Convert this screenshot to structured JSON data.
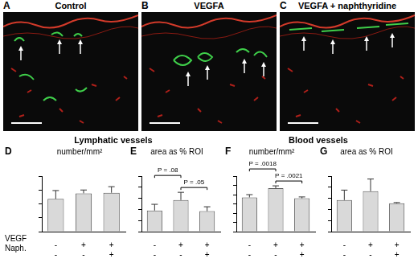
{
  "panels": [
    {
      "letter": "A",
      "title": "Control"
    },
    {
      "letter": "B",
      "title": "VEGFA"
    },
    {
      "letter": "C",
      "title": "VEGFA + naphthyridine"
    }
  ],
  "groups": [
    {
      "title": "Lymphatic vessels",
      "panels": [
        "D",
        "E"
      ]
    },
    {
      "title": "Blood vessels",
      "panels": [
        "F",
        "G"
      ]
    }
  ],
  "row_labels": [
    "VEGF",
    "Naph."
  ],
  "chart_data": [
    {
      "letter": "D",
      "type": "bar",
      "title": "number/mm²",
      "categories": [
        [
          "-",
          "-"
        ],
        [
          "+",
          "-"
        ],
        [
          "+",
          "+"
        ]
      ],
      "values": [
        11.8,
        13.8,
        14.0
      ],
      "errors": [
        3.0,
        1.2,
        2.2
      ],
      "color": "#d9d9d9",
      "ylim": [
        0,
        20
      ],
      "yticks": [
        0,
        5,
        10,
        15,
        20
      ],
      "grid": false,
      "tick_labels": "x"
    },
    {
      "letter": "E",
      "type": "bar",
      "title": "area as % ROI",
      "categories": [
        [
          "-",
          "-"
        ],
        [
          "+",
          "-"
        ],
        [
          "+",
          "+"
        ]
      ],
      "values": [
        0.95,
        1.42,
        0.92
      ],
      "errors": [
        0.28,
        0.35,
        0.2
      ],
      "color": "#d9d9d9",
      "ylim": [
        0,
        2.5
      ],
      "yticks": [
        0,
        0.5,
        1,
        1.5,
        2,
        2.5
      ],
      "grid": false,
      "tick_labels": "x",
      "annotations": [
        {
          "text": "P = .08",
          "from": 0,
          "to": 1
        },
        {
          "text": "P = .05",
          "from": 1,
          "to": 2
        }
      ]
    },
    {
      "letter": "F",
      "type": "bar",
      "title": "number/mm²",
      "categories": [
        [
          "-",
          "-"
        ],
        [
          "+",
          "-"
        ],
        [
          "+",
          "+"
        ]
      ],
      "values": [
        37,
        47,
        36
      ],
      "errors": [
        3,
        2.5,
        1.5
      ],
      "color": "#d9d9d9",
      "ylim": [
        0,
        60
      ],
      "yticks": [
        0,
        10,
        20,
        30,
        40,
        50,
        60
      ],
      "grid": false,
      "tick_labels": "x",
      "annotations": [
        {
          "text": "P = .0018",
          "from": 0,
          "to": 1
        },
        {
          "text": "P = .0021",
          "from": 1,
          "to": 2
        }
      ]
    },
    {
      "letter": "G",
      "type": "bar",
      "title": "area as % ROI",
      "categories": [
        [
          "-",
          "-"
        ],
        [
          "+",
          "-"
        ],
        [
          "+",
          "+"
        ]
      ],
      "values": [
        1.42,
        1.82,
        1.28
      ],
      "errors": [
        0.45,
        0.55,
        0.03
      ],
      "color": "#d9d9d9",
      "ylim": [
        0,
        2.5
      ],
      "yticks": [
        0,
        0.5,
        1,
        1.5,
        2,
        2.5
      ],
      "grid": false,
      "tick_labels": "x"
    }
  ]
}
